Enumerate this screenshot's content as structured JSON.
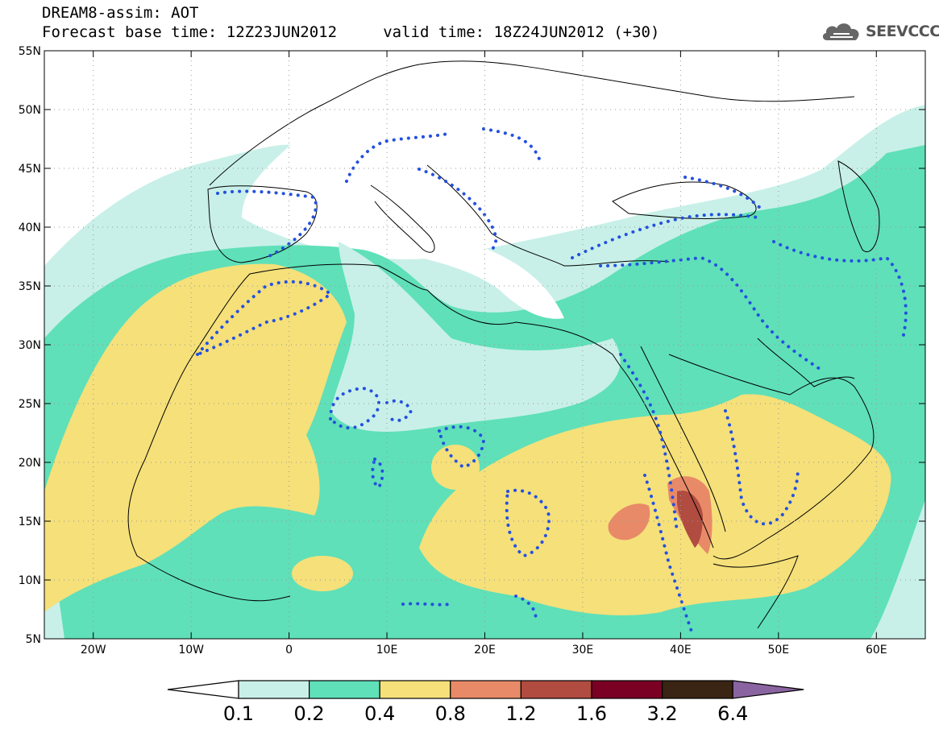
{
  "header": {
    "title": "DREAM8-assim: AOT",
    "line2": "Forecast base time: 12Z23JUN2012     valid time: 18Z24JUN2012 (+30)"
  },
  "logo": {
    "text": "SEEVCCC"
  },
  "map": {
    "projection": "equirectangular",
    "lon_range": [
      -25,
      65
    ],
    "lat_range": [
      5,
      55
    ],
    "lat_labels": [
      "55N",
      "50N",
      "45N",
      "40N",
      "35N",
      "30N",
      "25N",
      "20N",
      "15N",
      "10N",
      "5N"
    ],
    "lon_labels": [
      "20W",
      "10W",
      "0",
      "10E",
      "20E",
      "30E",
      "40E",
      "50E",
      "60E"
    ],
    "grid": true
  },
  "colorbar": {
    "levels": [
      "0.1",
      "0.2",
      "0.4",
      "0.8",
      "1.2",
      "1.6",
      "3.2",
      "6.4"
    ],
    "colors": [
      "#c8f0e8",
      "#5fe0b8",
      "#f5e07a",
      "#e88a68",
      "#b04c40",
      "#7a0024",
      "#3a2414",
      "#8a64a0"
    ]
  }
}
